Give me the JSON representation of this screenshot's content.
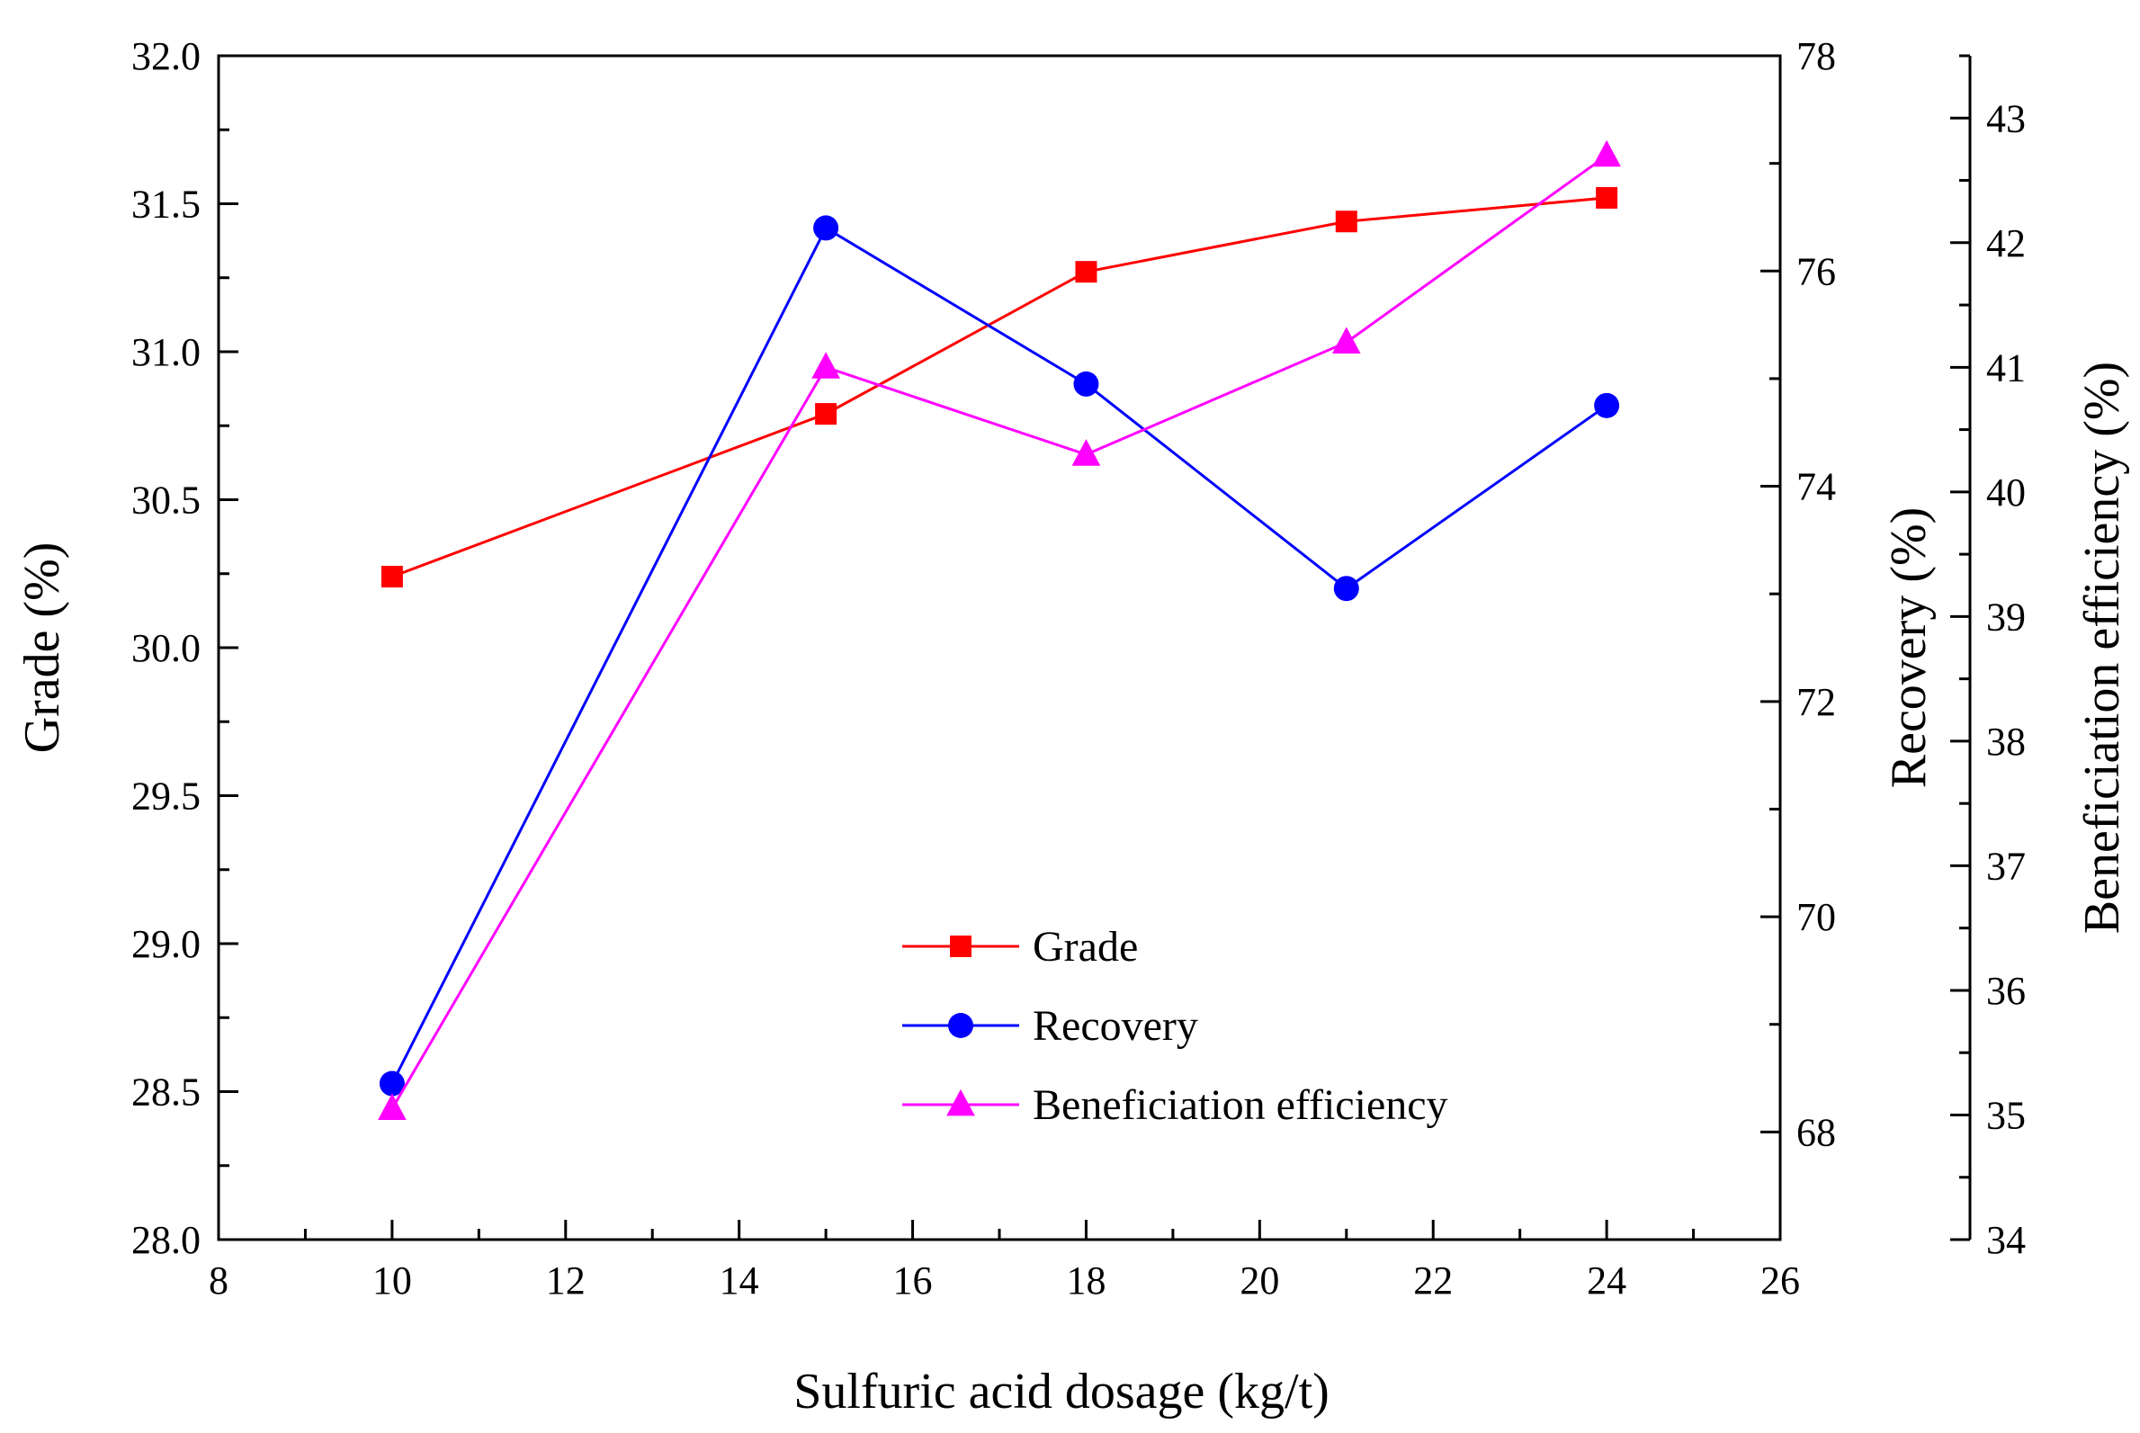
{
  "chart_data": {
    "type": "line",
    "x": [
      10,
      15,
      18,
      21,
      24
    ],
    "xlabel": "Sulfuric acid dosage (kg/t)",
    "xlim": [
      8,
      26
    ],
    "xticks": [
      8,
      10,
      12,
      14,
      16,
      18,
      20,
      22,
      24,
      26
    ],
    "axes": {
      "grade": {
        "label": "Grade (%)",
        "lim": [
          28.0,
          32.0
        ],
        "ticks": [
          28.0,
          28.5,
          29.0,
          29.5,
          30.0,
          30.5,
          31.0,
          31.5,
          32.0
        ],
        "tick_labels": [
          "28.0",
          "28.5",
          "29.0",
          "29.5",
          "30.0",
          "30.5",
          "31.0",
          "31.5",
          "32.0"
        ]
      },
      "recovery": {
        "label": "Recovery (%)",
        "lim": [
          67,
          78
        ],
        "ticks": [
          68,
          70,
          72,
          74,
          76,
          78
        ],
        "tick_labels": [
          "68",
          "70",
          "72",
          "74",
          "76",
          "78"
        ]
      },
      "efficiency": {
        "label": "Beneficiation efficiency (%)",
        "lim": [
          34,
          43.5
        ],
        "ticks": [
          34,
          35,
          36,
          37,
          38,
          39,
          40,
          41,
          42,
          43
        ],
        "tick_labels": [
          "34",
          "35",
          "36",
          "37",
          "38",
          "39",
          "40",
          "41",
          "42",
          "43"
        ]
      }
    },
    "series": [
      {
        "name": "Grade",
        "axis": "grade",
        "color": "#ff0000",
        "marker": "square",
        "values": [
          30.24,
          30.79,
          31.27,
          31.44,
          31.52
        ]
      },
      {
        "name": "Recovery",
        "axis": "recovery",
        "color": "#0000ff",
        "marker": "circle",
        "values": [
          68.45,
          76.4,
          74.95,
          73.05,
          74.75
        ]
      },
      {
        "name": "Beneficiation efficiency",
        "axis": "efficiency",
        "color": "#ff00ff",
        "marker": "triangle",
        "values": [
          35.05,
          41.0,
          40.3,
          41.2,
          42.7
        ]
      }
    ],
    "legend_position": "bottom-center"
  }
}
